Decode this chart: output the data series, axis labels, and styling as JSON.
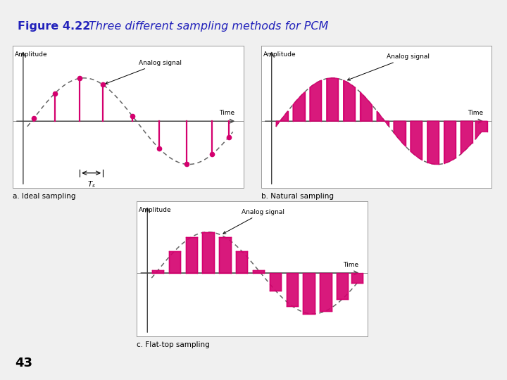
{
  "title_bold": "Figure 4.22",
  "title_italic": "Three different sampling methods for PCM",
  "top_bar_color": "#cc0000",
  "signal_color": "#d4006e",
  "dashed_color": "#666666",
  "background": "#f0f0f0",
  "panel_bg": "#ffffff",
  "label_a": "a. Ideal sampling",
  "label_b": "b. Natural sampling",
  "label_c": "c. Flat-top sampling",
  "page_number": "43",
  "title_color": "#2222bb",
  "text_color": "#000000"
}
